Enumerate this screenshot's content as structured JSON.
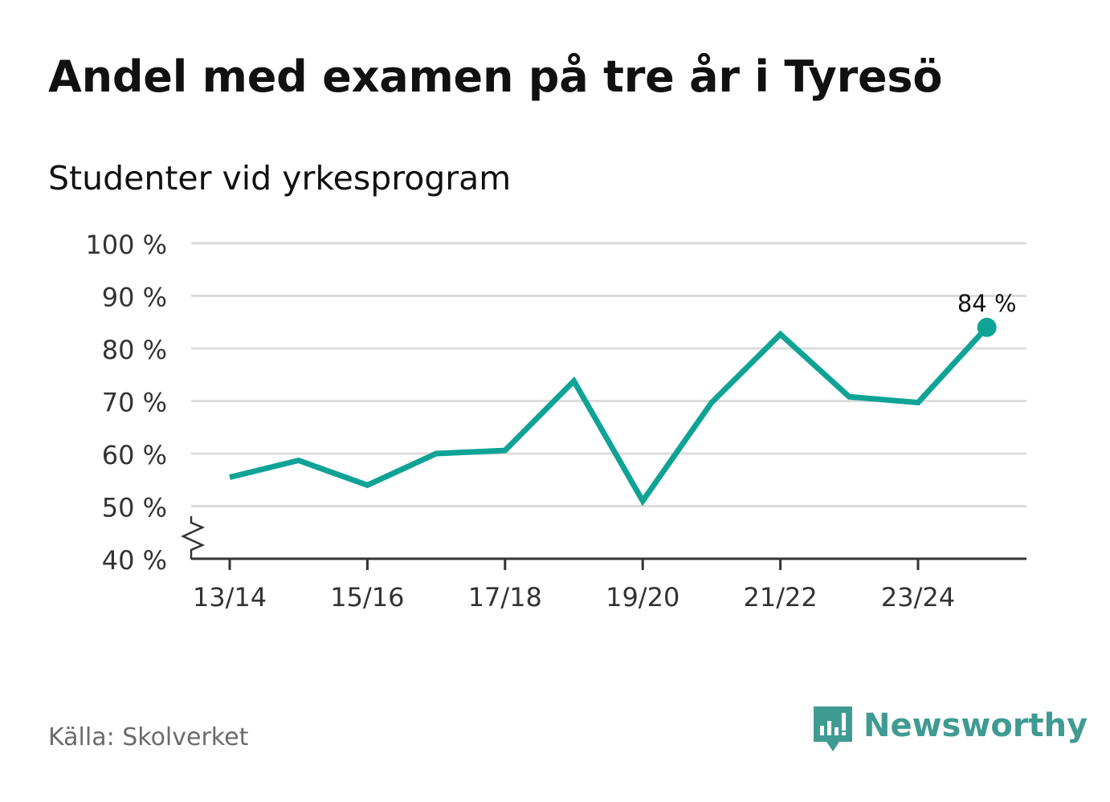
{
  "title": "Andel med examen på tre år i Tyresö",
  "subtitle": "Studenter vid yrkesprogram",
  "source": "Källa: Skolverket",
  "brand": "Newsworthy",
  "colors": {
    "line": "#0fa396",
    "grid": "#dcdcdc",
    "axis": "#333333",
    "text": "#111111",
    "muted": "#6b6b6b",
    "brand": "#3f9b92"
  },
  "chart_data": {
    "type": "line",
    "title": "Andel med examen på tre år i Tyresö",
    "subtitle": "Studenter vid yrkesprogram",
    "x": [
      "13/14",
      "14/15",
      "15/16",
      "16/17",
      "17/18",
      "18/19",
      "19/20",
      "20/21",
      "21/22",
      "22/23",
      "23/24",
      "24/25"
    ],
    "x_tick_labels": [
      "13/14",
      "15/16",
      "17/18",
      "19/20",
      "21/22",
      "23/24"
    ],
    "series": [
      {
        "values": [
          55.5,
          58.7,
          54,
          60,
          60.6,
          73.8,
          51,
          69.7,
          82.7,
          70.8,
          69.7,
          84
        ]
      }
    ],
    "ylim": [
      40,
      100
    ],
    "y_ticks": [
      40,
      50,
      60,
      70,
      80,
      90,
      100
    ],
    "y_tick_labels": [
      "40 %",
      "50 %",
      "60 %",
      "70 %",
      "80 %",
      "90 %",
      "100 %"
    ],
    "axis_break": true,
    "grid": true,
    "end_label": "84 %"
  }
}
